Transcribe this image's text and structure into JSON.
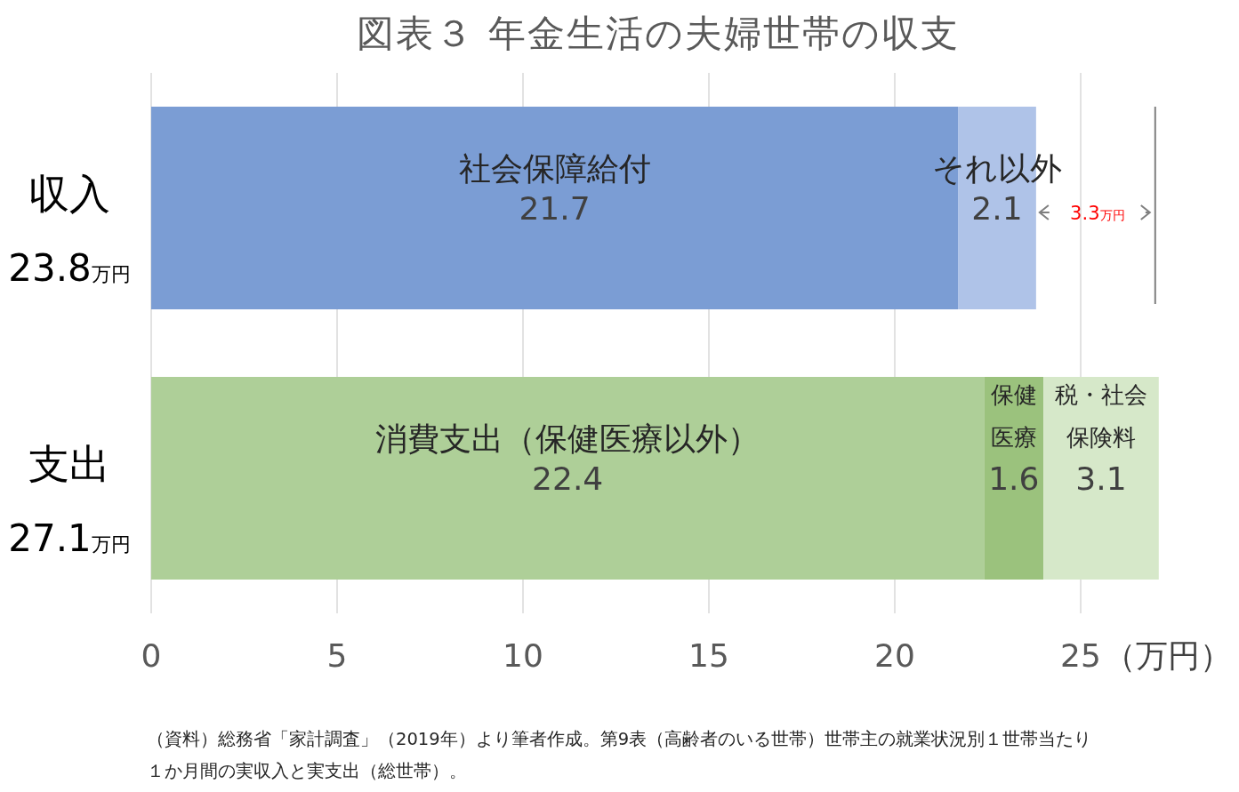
{
  "chart_data": {
    "type": "bar",
    "orientation": "horizontal",
    "stacked": true,
    "title": "図表３ 年金生活の夫婦世帯の収支",
    "categories": [
      "収入",
      "支出"
    ],
    "series": [
      {
        "name": "社会保障給付",
        "color": "#7b9dd4",
        "values": [
          21.7,
          null
        ]
      },
      {
        "name": "それ以外",
        "color": "#afc3e8",
        "values": [
          2.1,
          null
        ]
      },
      {
        "name": "消費支出（保健医療以外）",
        "color": "#aecf98",
        "values": [
          null,
          22.4
        ]
      },
      {
        "name": "保健医療",
        "color": "#9bc27d",
        "values": [
          null,
          1.6
        ]
      },
      {
        "name": "税・社会保険料",
        "color": "#d6e8c9",
        "values": [
          null,
          3.1
        ]
      }
    ],
    "totals": [
      "23.8万円",
      "27.1万円"
    ],
    "data_labels": true,
    "xlim": [
      0,
      27.1
    ],
    "xticks": [
      0,
      5,
      10,
      15,
      20,
      25
    ],
    "xlabel": "（万円）",
    "grid": "x",
    "legend": false,
    "annotations": [
      "3.3万円",
      "（資料）総務省「家計調査」（2019年）より筆者作成。第9表（高齢者のいる世帯）世帯主の就業状況別１世帯当たり１か月間の実収入と実支出（総世帯）。"
    ]
  }
}
